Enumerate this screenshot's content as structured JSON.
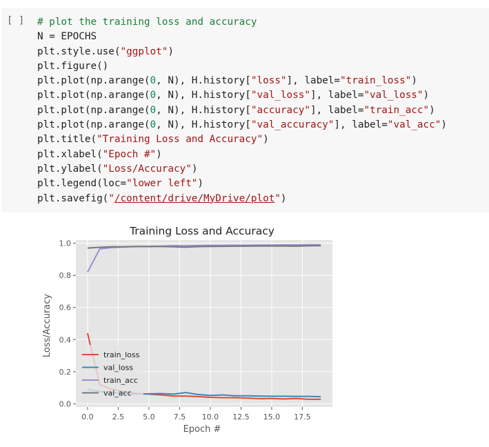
{
  "cell": {
    "run_label": "[ ]",
    "code_lines": [
      [
        {
          "t": "# plot the training loss and accuracy",
          "c": "comment"
        }
      ],
      [
        {
          "t": "N = EPOCHS",
          "c": "kw"
        }
      ],
      [
        {
          "t": "plt.style.use(",
          "c": "kw"
        },
        {
          "t": "\"ggplot\"",
          "c": "str"
        },
        {
          "t": ")",
          "c": "kw"
        }
      ],
      [
        {
          "t": "plt.figure()",
          "c": "kw"
        }
      ],
      [
        {
          "t": "plt.plot(np.arange(",
          "c": "kw"
        },
        {
          "t": "0",
          "c": "num"
        },
        {
          "t": ", N), H.history[",
          "c": "kw"
        },
        {
          "t": "\"loss\"",
          "c": "str"
        },
        {
          "t": "], label=",
          "c": "kw"
        },
        {
          "t": "\"train_loss\"",
          "c": "str"
        },
        {
          "t": ")",
          "c": "kw"
        }
      ],
      [
        {
          "t": "plt.plot(np.arange(",
          "c": "kw"
        },
        {
          "t": "0",
          "c": "num"
        },
        {
          "t": ", N), H.history[",
          "c": "kw"
        },
        {
          "t": "\"val_loss\"",
          "c": "str"
        },
        {
          "t": "], label=",
          "c": "kw"
        },
        {
          "t": "\"val_loss\"",
          "c": "str"
        },
        {
          "t": ")",
          "c": "kw"
        }
      ],
      [
        {
          "t": "plt.plot(np.arange(",
          "c": "kw"
        },
        {
          "t": "0",
          "c": "num"
        },
        {
          "t": ", N), H.history[",
          "c": "kw"
        },
        {
          "t": "\"accuracy\"",
          "c": "str"
        },
        {
          "t": "], label=",
          "c": "kw"
        },
        {
          "t": "\"train_acc\"",
          "c": "str"
        },
        {
          "t": ")",
          "c": "kw"
        }
      ],
      [
        {
          "t": "plt.plot(np.arange(",
          "c": "kw"
        },
        {
          "t": "0",
          "c": "num"
        },
        {
          "t": ", N), H.history[",
          "c": "kw"
        },
        {
          "t": "\"val_accuracy\"",
          "c": "str"
        },
        {
          "t": "], label=",
          "c": "kw"
        },
        {
          "t": "\"val_acc\"",
          "c": "str"
        },
        {
          "t": ")",
          "c": "kw"
        }
      ],
      [
        {
          "t": "plt.title(",
          "c": "kw"
        },
        {
          "t": "\"Training Loss and Accuracy\"",
          "c": "str"
        },
        {
          "t": ")",
          "c": "kw"
        }
      ],
      [
        {
          "t": "plt.xlabel(",
          "c": "kw"
        },
        {
          "t": "\"Epoch #\"",
          "c": "str"
        },
        {
          "t": ")",
          "c": "kw"
        }
      ],
      [
        {
          "t": "plt.ylabel(",
          "c": "kw"
        },
        {
          "t": "\"Loss/Accuracy\"",
          "c": "str"
        },
        {
          "t": ")",
          "c": "kw"
        }
      ],
      [
        {
          "t": "plt.legend(loc=",
          "c": "kw"
        },
        {
          "t": "\"lower left\"",
          "c": "str"
        },
        {
          "t": ")",
          "c": "kw"
        }
      ],
      [
        {
          "t": "plt.savefig(",
          "c": "kw"
        },
        {
          "t": "\"",
          "c": "str"
        },
        {
          "t": "/content/drive/MyDrive/plot",
          "c": "path"
        },
        {
          "t": "\"",
          "c": "str"
        },
        {
          "t": ")",
          "c": "kw"
        }
      ]
    ]
  },
  "colors": {
    "plot_bg": "#e5e5e5",
    "grid": "#ffffff",
    "text": "#555555",
    "train_loss": "#e24a33",
    "val_loss": "#348abd",
    "train_acc": "#988ed5",
    "val_acc": "#777777"
  },
  "chart_data": {
    "type": "line",
    "title": "Training Loss and Accuracy",
    "xlabel": "Epoch #",
    "ylabel": "Loss/Accuracy",
    "xlim": [
      -0.95,
      19.95
    ],
    "ylim": [
      -0.02,
      1.02
    ],
    "xticks": [
      0,
      2.5,
      5,
      7.5,
      10,
      12.5,
      15,
      17.5
    ],
    "xtick_labels": [
      "0.0",
      "2.5",
      "5.0",
      "7.5",
      "10.0",
      "12.5",
      "15.0",
      "17.5"
    ],
    "yticks": [
      0,
      0.2,
      0.4,
      0.6,
      0.8,
      1.0
    ],
    "ytick_labels": [
      "0.0",
      "0.2",
      "0.4",
      "0.6",
      "0.8",
      "1.0"
    ],
    "grid": true,
    "legend_loc": "lower left",
    "x": [
      0,
      1,
      2,
      3,
      4,
      5,
      6,
      7,
      8,
      9,
      10,
      11,
      12,
      13,
      14,
      15,
      16,
      17,
      18,
      19
    ],
    "series": [
      {
        "name": "train_loss",
        "color_key": "train_loss",
        "values": [
          0.44,
          0.12,
          0.09,
          0.075,
          0.065,
          0.06,
          0.055,
          0.048,
          0.048,
          0.045,
          0.04,
          0.038,
          0.038,
          0.036,
          0.032,
          0.033,
          0.03,
          0.033,
          0.028,
          0.028
        ]
      },
      {
        "name": "val_loss",
        "color_key": "val_loss",
        "values": [
          0.09,
          0.075,
          0.07,
          0.065,
          0.06,
          0.062,
          0.064,
          0.06,
          0.07,
          0.058,
          0.052,
          0.055,
          0.05,
          0.05,
          0.048,
          0.047,
          0.047,
          0.046,
          0.046,
          0.044
        ]
      },
      {
        "name": "train_acc",
        "color_key": "train_acc",
        "values": [
          0.82,
          0.965,
          0.973,
          0.977,
          0.979,
          0.981,
          0.982,
          0.985,
          0.984,
          0.986,
          0.987,
          0.987,
          0.988,
          0.988,
          0.989,
          0.989,
          0.99,
          0.99,
          0.991,
          0.991
        ]
      },
      {
        "name": "val_acc",
        "color_key": "val_acc",
        "values": [
          0.97,
          0.975,
          0.978,
          0.978,
          0.98,
          0.979,
          0.98,
          0.978,
          0.976,
          0.979,
          0.98,
          0.981,
          0.982,
          0.982,
          0.983,
          0.983,
          0.983,
          0.982,
          0.984,
          0.985
        ]
      }
    ]
  }
}
